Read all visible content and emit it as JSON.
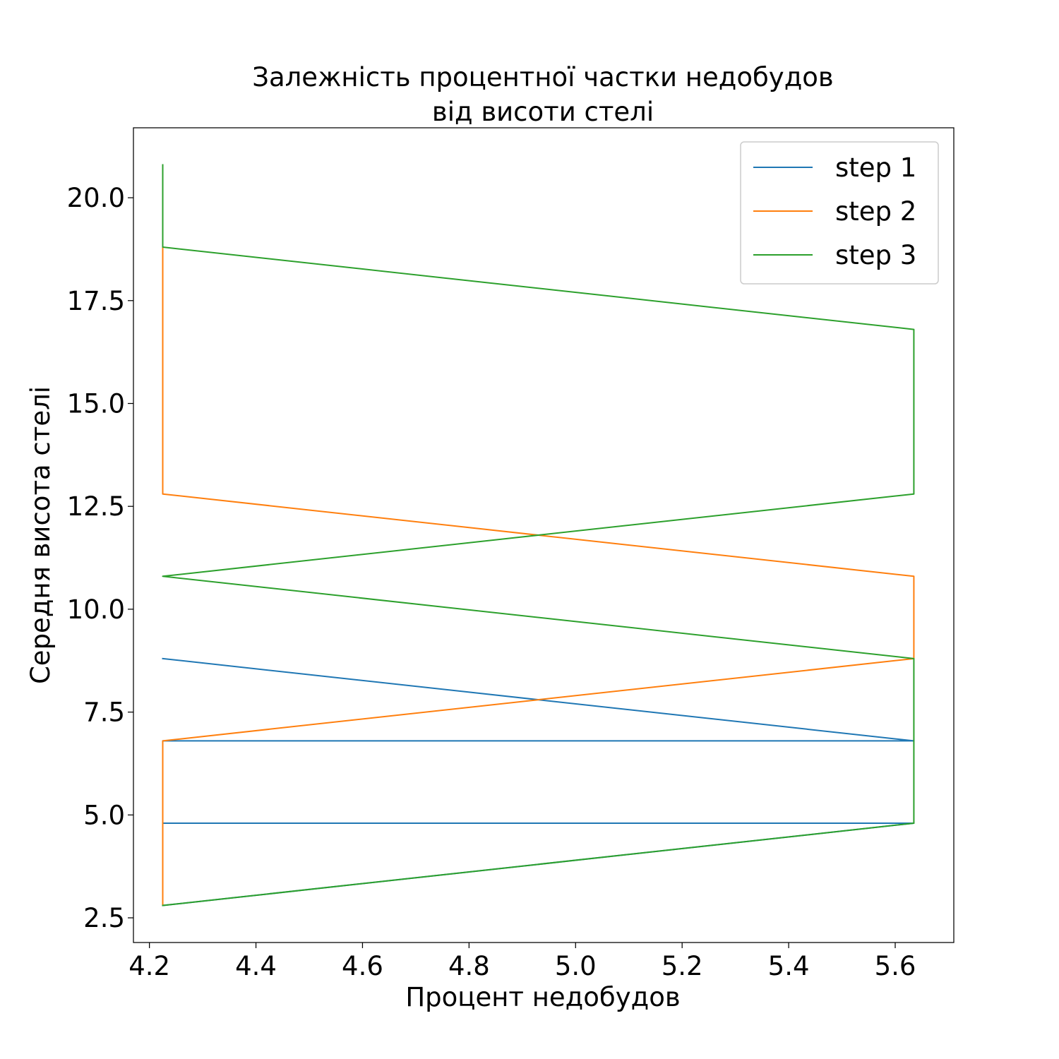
{
  "chart_data": {
    "type": "line",
    "title": "Залежність процентної частки недобудов",
    "subtitle": "від висоти стелі",
    "xlabel": "Процент недобудов",
    "ylabel": "Середня висота стелі",
    "xlim": [
      4.17,
      5.71
    ],
    "ylim": [
      1.9,
      21.7
    ],
    "xticks": [
      {
        "value": 4.2,
        "label": "4.2"
      },
      {
        "value": 4.4,
        "label": "4.4"
      },
      {
        "value": 4.6,
        "label": "4.6"
      },
      {
        "value": 4.8,
        "label": "4.8"
      },
      {
        "value": 5.0,
        "label": "5.0"
      },
      {
        "value": 5.2,
        "label": "5.2"
      },
      {
        "value": 5.4,
        "label": "5.4"
      },
      {
        "value": 5.6,
        "label": "5.6"
      }
    ],
    "yticks": [
      {
        "value": 2.5,
        "label": "2.5"
      },
      {
        "value": 5.0,
        "label": "5.0"
      },
      {
        "value": 7.5,
        "label": "7.5"
      },
      {
        "value": 10.0,
        "label": "10.0"
      },
      {
        "value": 12.5,
        "label": "12.5"
      },
      {
        "value": 15.0,
        "label": "15.0"
      },
      {
        "value": 17.5,
        "label": "17.5"
      },
      {
        "value": 20.0,
        "label": "20.0"
      }
    ],
    "grid": false,
    "legend_position": "top-right",
    "series": [
      {
        "name": "step 1",
        "color": "#1f77b4",
        "x": [
          4.225,
          5.635,
          4.225,
          4.225,
          5.635,
          4.225
        ],
        "y": [
          2.8,
          4.8,
          4.8,
          6.8,
          6.8,
          8.8
        ]
      },
      {
        "name": "step 2",
        "color": "#ff7f0e",
        "x": [
          4.225,
          4.225,
          4.225,
          5.635,
          5.635,
          4.225,
          4.225,
          4.225,
          4.225,
          4.225
        ],
        "y": [
          2.8,
          4.8,
          6.8,
          8.8,
          10.8,
          12.8,
          14.8,
          14.8,
          16.8,
          18.8
        ]
      },
      {
        "name": "step 3",
        "color": "#2ca02c",
        "x": [
          4.225,
          5.635,
          5.635,
          5.635,
          4.225,
          4.225,
          5.635,
          5.635,
          4.225,
          4.225
        ],
        "y": [
          2.8,
          4.8,
          6.8,
          8.8,
          10.8,
          10.8,
          12.8,
          16.8,
          18.8,
          20.8
        ]
      }
    ]
  }
}
